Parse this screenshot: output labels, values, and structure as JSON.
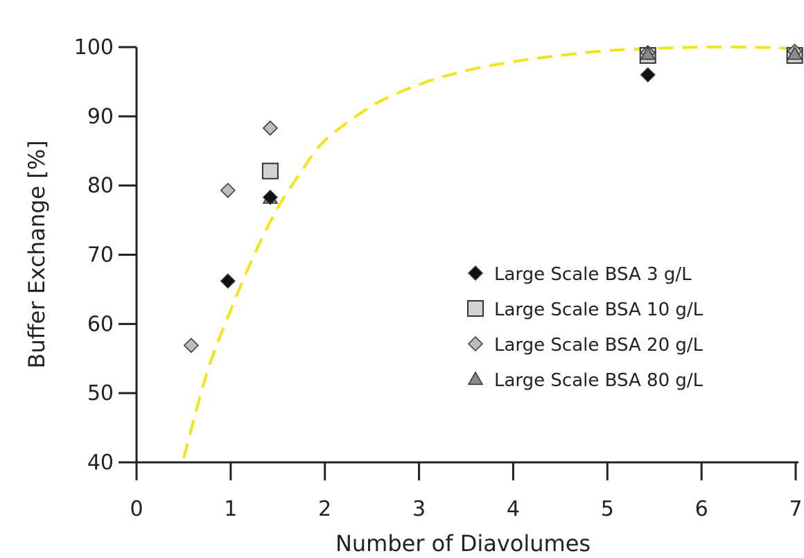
{
  "chart_data": {
    "type": "scatter",
    "title": "",
    "xlabel": "Number of Diavolumes",
    "ylabel": "Buffer Exchange [%]",
    "xlim": [
      0,
      7
    ],
    "ylim": [
      40,
      100
    ],
    "x_ticks": [
      0,
      1,
      2,
      3,
      4,
      5,
      6,
      7
    ],
    "y_ticks": [
      40,
      50,
      60,
      70,
      80,
      90,
      100
    ],
    "grid": false,
    "legend_position": "center-right",
    "series": [
      {
        "name": "Large Scale BSA 3 g/L",
        "marker": "diamond",
        "color": "#111111",
        "points": [
          [
            0.97,
            66.2
          ],
          [
            1.42,
            78.3
          ],
          [
            5.43,
            96.0
          ]
        ]
      },
      {
        "name": "Large Scale BSA 10 g/L",
        "marker": "square",
        "color": "#d3d3d3",
        "points": [
          [
            1.42,
            82.1
          ],
          [
            5.43,
            98.8
          ],
          [
            6.99,
            98.8
          ]
        ]
      },
      {
        "name": "Large Scale BSA 20 g/L",
        "marker": "diamond",
        "color": "#bdbdbd",
        "points": [
          [
            0.58,
            56.9
          ],
          [
            0.97,
            79.3
          ],
          [
            1.42,
            88.3
          ],
          [
            5.43,
            99.2
          ],
          [
            6.99,
            99.4
          ]
        ]
      },
      {
        "name": "Large Scale BSA 80 g/L",
        "marker": "triangle",
        "color": "#8a8a8a",
        "points": [
          [
            1.42,
            78.2
          ],
          [
            5.43,
            99.0
          ],
          [
            6.99,
            99.0
          ]
        ]
      }
    ],
    "fit_curve": {
      "style": "dashed",
      "color": "#f2e41c",
      "points": [
        [
          0.5,
          40.6
        ],
        [
          0.75,
          53.0
        ],
        [
          1.0,
          62.0
        ],
        [
          1.25,
          70.0
        ],
        [
          1.5,
          76.8
        ],
        [
          1.75,
          82.0
        ],
        [
          2.0,
          86.5
        ],
        [
          2.5,
          91.5
        ],
        [
          3.0,
          94.6
        ],
        [
          3.5,
          96.6
        ],
        [
          4.0,
          97.9
        ],
        [
          4.5,
          98.8
        ],
        [
          5.0,
          99.5
        ],
        [
          5.5,
          99.8
        ],
        [
          6.0,
          100.0
        ],
        [
          6.5,
          100.0
        ],
        [
          7.0,
          99.8
        ]
      ]
    }
  }
}
